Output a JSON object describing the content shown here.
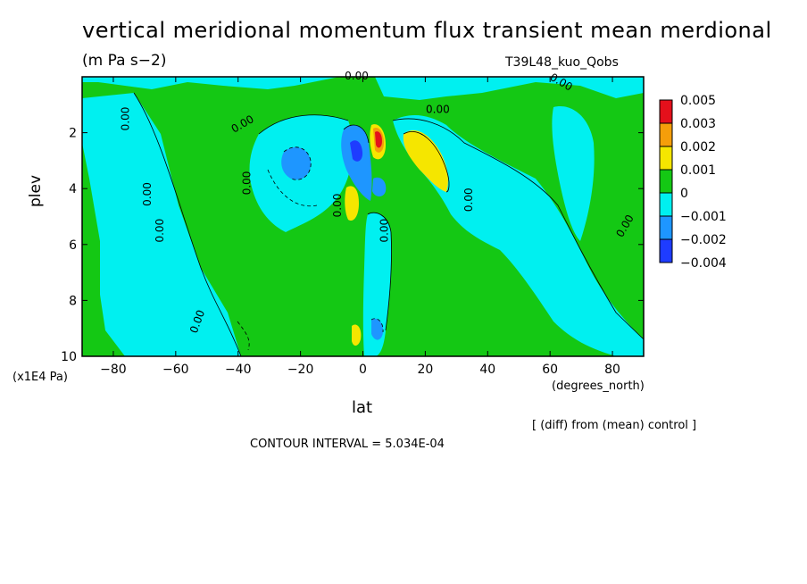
{
  "chart_data": {
    "type": "heatmap",
    "title": "vertical meridional momentum flux transient mean merdional",
    "units": "(m Pa s−2)",
    "run_name": "T39L48_kuo_Qobs",
    "xlabel": "lat",
    "x_units": "(degrees_north)",
    "ylabel": "plev",
    "y_units": "(x1E4 Pa)",
    "xlim": [
      -90,
      90
    ],
    "ylim": [
      10,
      0
    ],
    "x_ticks": [
      "−80",
      "−60",
      "−40",
      "−20",
      "0",
      "20",
      "40",
      "60",
      "80"
    ],
    "x_tick_values": [
      -80,
      -60,
      -40,
      -20,
      0,
      20,
      40,
      60,
      80
    ],
    "y_ticks": [
      "2",
      "4",
      "6",
      "8",
      "10"
    ],
    "y_tick_values": [
      2,
      4,
      6,
      8,
      10
    ],
    "contour_interval": "CONTOUR INTERVAL = 5.034E-04",
    "note": "[ (diff) from (mean) control ]",
    "contour_labels": [
      "0.00"
    ],
    "legend": {
      "levels": [
        "0.005",
        "0.003",
        "0.002",
        "0.001",
        "0",
        "−0.001",
        "−0.002",
        "−0.004"
      ],
      "colors": [
        "#e4101b",
        "#f59e0a",
        "#f5e600",
        "#14c814",
        "#00f0f0",
        "#1e96ff",
        "#1e3cff"
      ],
      "placement": "right"
    },
    "regions": [
      {
        "name": "positive-max",
        "lat": 5,
        "plev": 2.3,
        "value": 0.005
      },
      {
        "name": "positive-max-2",
        "lat": 20,
        "plev": 3,
        "value": 0.002
      },
      {
        "name": "positive-2",
        "lat": -3,
        "plev": 4.5,
        "value": 0.002
      },
      {
        "name": "positive-3",
        "lat": -2,
        "plev": 9.3,
        "value": 0.002
      },
      {
        "name": "negative-max",
        "lat": -2,
        "plev": 2.5,
        "value": -0.004
      },
      {
        "name": "negative-2",
        "lat": -20,
        "plev": 3,
        "value": -0.002
      },
      {
        "name": "negative-3",
        "lat": 5,
        "plev": 9.5,
        "value": -0.002
      }
    ]
  }
}
